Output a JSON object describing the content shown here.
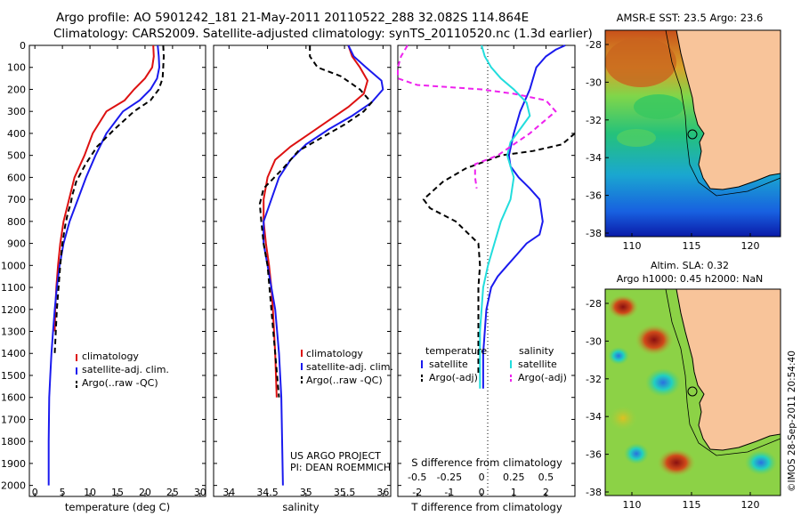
{
  "header": {
    "line1": "Argo profile: AO 5901242_181 21-May-2011 20110522_288 32.082S 114.864E",
    "line2": "Climatology: CARS2009. Satellite-adjusted climatology: synTS_20110520.nc (1.3d earlier)"
  },
  "credits": {
    "project": "US ARGO PROJECT",
    "pi": "PI: DEAN ROEMMICH",
    "stamp": "©IMOS 28-Sep-2011 20:54:40"
  },
  "chart_data": [
    {
      "type": "line",
      "panel": "temperature",
      "xlabel": "temperature (deg C)",
      "xlim": [
        -1,
        31
      ],
      "xticks": [
        0,
        5,
        10,
        15,
        20,
        25,
        30
      ],
      "ylim": [
        0,
        2050
      ],
      "yticks": [
        0,
        100,
        200,
        300,
        400,
        500,
        600,
        700,
        800,
        900,
        1000,
        1100,
        1200,
        1300,
        1400,
        1500,
        1600,
        1700,
        1800,
        1900,
        2000
      ],
      "y_reversed": true,
      "legend": [
        "climatology",
        "satellite-adj. clim.",
        "Argo(..raw -QC)"
      ],
      "colors": {
        "climatology": "#dd1111",
        "satellite": "#1a1aee",
        "argo": "#000000"
      },
      "series": [
        {
          "name": "climatology",
          "x": [
            21.5,
            21.6,
            21.3,
            20,
            18,
            16.3,
            13,
            10.5,
            9,
            7.2,
            6.2,
            5.2,
            4.6,
            4.2,
            3.9,
            3.7,
            3.6
          ],
          "y": [
            0,
            50,
            100,
            150,
            200,
            250,
            300,
            400,
            500,
            600,
            700,
            800,
            900,
            1000,
            1100,
            1200,
            1300
          ]
        },
        {
          "name": "satellite-adj. clim.",
          "x": [
            22.3,
            22.5,
            22.6,
            22.2,
            21,
            19,
            16,
            13,
            11,
            9.3,
            7.8,
            6.3,
            5.2,
            4.5,
            4,
            3.6,
            3.3,
            3,
            2.8,
            2.6,
            2.5,
            2.5
          ],
          "y": [
            0,
            50,
            100,
            150,
            200,
            250,
            300,
            400,
            500,
            600,
            700,
            800,
            900,
            1000,
            1100,
            1200,
            1300,
            1400,
            1500,
            1600,
            1800,
            2000
          ]
        },
        {
          "name": "Argo(..raw -QC)",
          "x": [
            23.3,
            23.4,
            23.3,
            23.2,
            22.5,
            21,
            18,
            14.5,
            11.3,
            9.2,
            7.5,
            6.8,
            6.5,
            6,
            5.5,
            5,
            4.6,
            4.3,
            4,
            3.8,
            3.6
          ],
          "y": [
            0,
            50,
            100,
            150,
            200,
            250,
            300,
            380,
            460,
            540,
            620,
            680,
            720,
            760,
            820,
            900,
            1000,
            1100,
            1200,
            1300,
            1400
          ]
        }
      ]
    },
    {
      "type": "line",
      "panel": "salinity",
      "xlabel": "salinity",
      "xlim": [
        33.8,
        36.1
      ],
      "xticks": [
        34,
        34.5,
        35,
        35.5,
        36
      ],
      "ylim": [
        0,
        2050
      ],
      "y_reversed": true,
      "legend": [
        "climatology",
        "satellite-adj. clim.",
        "Argo(..raw -QC)"
      ],
      "series": [
        {
          "name": "climatology",
          "x": [
            35.55,
            35.6,
            35.7,
            35.8,
            35.75,
            35.55,
            35.3,
            35.05,
            34.8,
            34.6,
            34.5,
            34.45,
            34.45,
            34.48,
            34.52,
            34.55,
            34.57,
            34.6,
            34.62
          ],
          "y": [
            0,
            50,
            100,
            160,
            220,
            280,
            340,
            400,
            460,
            520,
            600,
            700,
            800,
            900,
            1000,
            1100,
            1200,
            1400,
            1600
          ]
        },
        {
          "name": "satellite-adj. clim.",
          "x": [
            35.55,
            35.62,
            35.78,
            35.98,
            36.0,
            35.85,
            35.6,
            35.3,
            35.0,
            34.8,
            34.65,
            34.55,
            34.45,
            34.45,
            34.5,
            34.55,
            34.6,
            34.65,
            34.68,
            34.7
          ],
          "y": [
            0,
            50,
            100,
            160,
            200,
            260,
            320,
            380,
            450,
            520,
            600,
            700,
            800,
            900,
            1000,
            1100,
            1200,
            1400,
            1600,
            2000
          ]
        },
        {
          "name": "Argo(..raw -QC)",
          "x": [
            35.05,
            35.05,
            35.15,
            35.45,
            35.7,
            35.85,
            35.75,
            35.5,
            35.2,
            34.9,
            34.7,
            34.45,
            34.4,
            34.42,
            34.45,
            34.5,
            34.55,
            34.6,
            34.65
          ],
          "y": [
            0,
            50,
            100,
            140,
            200,
            260,
            300,
            360,
            420,
            480,
            560,
            650,
            720,
            800,
            900,
            1000,
            1200,
            1400,
            1600
          ]
        }
      ]
    },
    {
      "type": "line",
      "panel": "difference",
      "xlabel": "T difference from climatology",
      "xlabel_top": "S difference from climatology",
      "xlim": [
        -2.6,
        2.9
      ],
      "xticks": [
        -2,
        -1,
        0,
        1,
        2
      ],
      "s_ticks": [
        "-0.5",
        "-0.25",
        "0",
        "0.25",
        "0.5"
      ],
      "s_tick_positions_T": [
        -2,
        -1,
        0,
        1,
        2
      ],
      "ylim": [
        0,
        2050
      ],
      "y_reversed": true,
      "legend_groups": {
        "temperature": [
          "satellite",
          "Argo(-adj)"
        ],
        "salinity": [
          "satellite",
          "Argo(-adj)"
        ]
      },
      "series": [
        {
          "name": "temperature satellite",
          "color": "#1a1aee",
          "dash": "solid",
          "x": [
            2.6,
            2.3,
            2.0,
            1.7,
            1.5,
            1.2,
            1.0,
            0.85,
            0.9,
            1.15,
            1.5,
            1.8,
            1.9,
            1.8,
            1.4,
            1.1,
            0.8,
            0.5,
            0.3,
            0.15,
            0.1,
            0.05,
            0.05,
            0.05,
            0.05
          ],
          "y": [
            0,
            20,
            50,
            100,
            200,
            300,
            400,
            500,
            550,
            600,
            650,
            700,
            800,
            860,
            900,
            950,
            1000,
            1050,
            1100,
            1200,
            1300,
            1400,
            1450,
            1500,
            1560
          ]
        },
        {
          "name": "temperature Argo(-adj)",
          "color": "#000000",
          "dash": "dash",
          "x": [
            2.9,
            2.5,
            1.6,
            0.6,
            -0.5,
            -1.2,
            -1.8,
            -1.6,
            -0.8,
            -0.1,
            -0.05,
            -0.1,
            -0.1,
            -0.1,
            -0.1,
            -0.1
          ],
          "y": [
            400,
            450,
            480,
            500,
            560,
            620,
            700,
            740,
            800,
            900,
            1000,
            1100,
            1200,
            1300,
            1400,
            1500
          ]
        },
        {
          "name": "salinity satellite",
          "color": "#22dddd",
          "dash": "solid",
          "x": [
            0,
            0.1,
            0.3,
            0.6,
            1.0,
            1.4,
            1.5,
            1.2,
            0.9,
            0.8,
            0.9,
            1.0,
            0.9,
            0.6,
            0.4,
            0.2,
            0.05,
            0.0,
            -0.05,
            -0.05,
            -0.05,
            -0.05
          ],
          "y": [
            0,
            50,
            100,
            150,
            200,
            260,
            320,
            380,
            440,
            500,
            550,
            600,
            700,
            800,
            900,
            1000,
            1100,
            1200,
            1300,
            1400,
            1500,
            1560
          ]
        },
        {
          "name": "salinity Argo(-adj)",
          "color": "#ee22ee",
          "dash": "dash",
          "x": [
            -2.3,
            -2.5,
            -2.6,
            -2.6,
            -2.0,
            0.0,
            1.0,
            2.0,
            2.3,
            1.5,
            0.5,
            -0.2,
            -0.2,
            -0.15
          ],
          "y": [
            0,
            50,
            100,
            150,
            180,
            200,
            220,
            250,
            300,
            400,
            500,
            540,
            600,
            650
          ]
        }
      ]
    }
  ],
  "maps": {
    "map1": {
      "title": "AMSR-E SST: 23.5 Argo: 23.6",
      "xticks": [
        "110",
        "115",
        "120"
      ],
      "yticks": [
        "-28",
        "-30",
        "-32",
        "-34",
        "-36",
        "-38"
      ]
    },
    "map2": {
      "title1": "Altim. SLA: 0.32",
      "title2": "Argo h1000: 0.45 h2000: NaN",
      "xticks": [
        "110",
        "115",
        "120"
      ],
      "yticks": [
        "-28",
        "-30",
        "-32",
        "-34",
        "-36",
        "-38"
      ]
    }
  }
}
